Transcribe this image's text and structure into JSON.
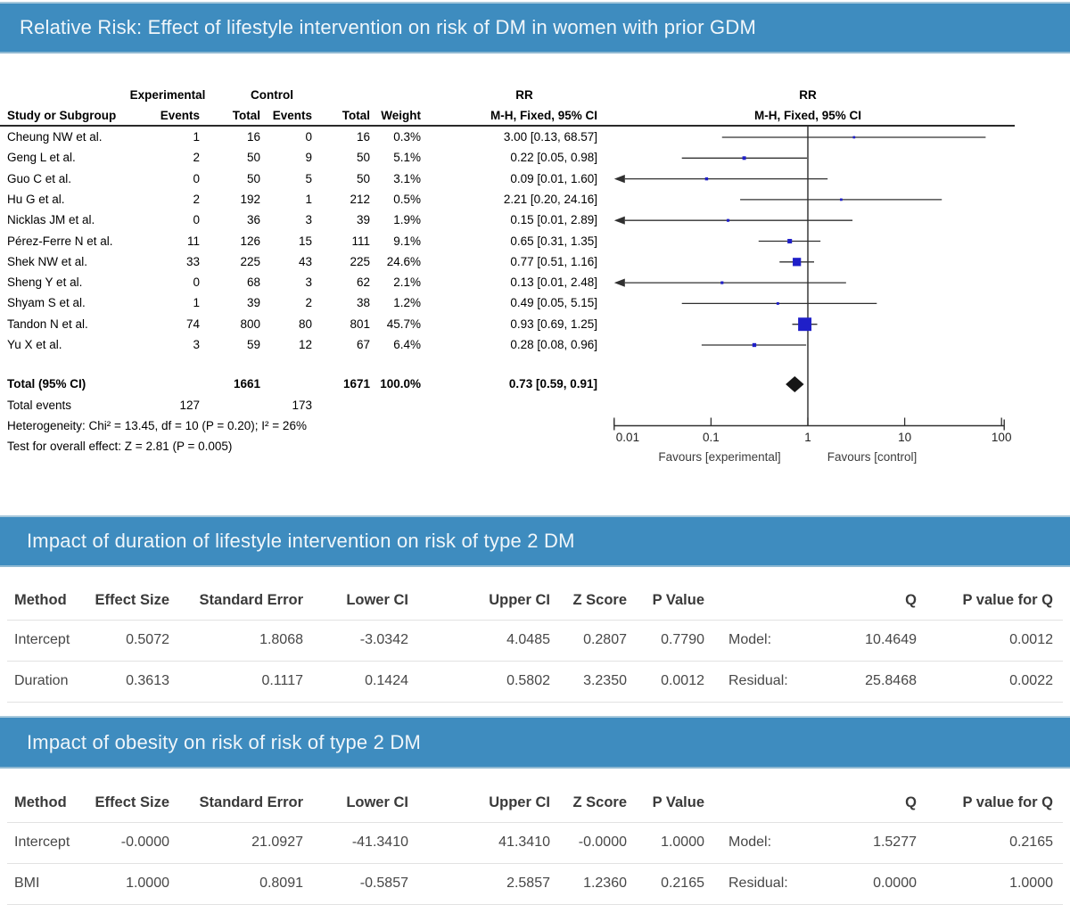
{
  "colors": {
    "banner_bg": "#3e8cbf",
    "marker_blue": "#1f1fc8",
    "diamond_black": "#161616",
    "line_dark": "#303030"
  },
  "forest_header": {
    "group_experimental": "Experimental",
    "group_control": "Control",
    "rr_top_left": "RR",
    "rr_bottom_left": "M-H, Fixed, 95% CI",
    "rr_top_right": "RR",
    "rr_bottom_right": "M-H, Fixed, 95% CI",
    "study": "Study or Subgroup",
    "events": "Events",
    "total": "Total",
    "weight": "Weight"
  },
  "chart_data": [
    {
      "type": "scatter",
      "subtype": "forest-plot",
      "title": "Relative Risk: Effect of lifestyle intervention on risk of DM in women with prior GDM",
      "effect_measure": "RR",
      "model": "M-H, Fixed, 95% CI",
      "x_scale": "log10",
      "xlim": [
        0.01,
        100
      ],
      "x_ticks": [
        0.01,
        0.1,
        1,
        10,
        100
      ],
      "x_tick_labels": [
        "0.01",
        "0.1",
        "1",
        "10",
        "100"
      ],
      "favours_left": "Favours [experimental]",
      "favours_right": "Favours [control]",
      "studies": [
        {
          "name": "Cheung NW et al.",
          "exp_events": "1",
          "exp_total": "16",
          "ctrl_events": "0",
          "ctrl_total": "16",
          "weight": "0.3%",
          "weight_pct": 0.3,
          "rr": 3.0,
          "low": 0.13,
          "high": 68.57,
          "ci_text": "3.00 [0.13, 68.57]"
        },
        {
          "name": "Geng L et al.",
          "exp_events": "2",
          "exp_total": "50",
          "ctrl_events": "9",
          "ctrl_total": "50",
          "weight": "5.1%",
          "weight_pct": 5.1,
          "rr": 0.22,
          "low": 0.05,
          "high": 0.98,
          "ci_text": "0.22 [0.05, 0.98]"
        },
        {
          "name": "Guo C et al.",
          "exp_events": "0",
          "exp_total": "50",
          "ctrl_events": "5",
          "ctrl_total": "50",
          "weight": "3.1%",
          "weight_pct": 3.1,
          "rr": 0.09,
          "low": 0.01,
          "high": 1.6,
          "ci_text": "0.09 [0.01, 1.60]"
        },
        {
          "name": "Hu G et al.",
          "exp_events": "2",
          "exp_total": "192",
          "ctrl_events": "1",
          "ctrl_total": "212",
          "weight": "0.5%",
          "weight_pct": 0.5,
          "rr": 2.21,
          "low": 0.2,
          "high": 24.16,
          "ci_text": "2.21 [0.20, 24.16]"
        },
        {
          "name": "Nicklas JM et al.",
          "exp_events": "0",
          "exp_total": "36",
          "ctrl_events": "3",
          "ctrl_total": "39",
          "weight": "1.9%",
          "weight_pct": 1.9,
          "rr": 0.15,
          "low": 0.01,
          "high": 2.89,
          "ci_text": "0.15 [0.01, 2.89]"
        },
        {
          "name": "Pérez-Ferre N et al.",
          "exp_events": "11",
          "exp_total": "126",
          "ctrl_events": "15",
          "ctrl_total": "111",
          "weight": "9.1%",
          "weight_pct": 9.1,
          "rr": 0.65,
          "low": 0.31,
          "high": 1.35,
          "ci_text": "0.65 [0.31, 1.35]"
        },
        {
          "name": "Shek NW et al.",
          "exp_events": "33",
          "exp_total": "225",
          "ctrl_events": "43",
          "ctrl_total": "225",
          "weight": "24.6%",
          "weight_pct": 24.6,
          "rr": 0.77,
          "low": 0.51,
          "high": 1.16,
          "ci_text": "0.77 [0.51, 1.16]"
        },
        {
          "name": "Sheng Y et al.",
          "exp_events": "0",
          "exp_total": "68",
          "ctrl_events": "3",
          "ctrl_total": "62",
          "weight": "2.1%",
          "weight_pct": 2.1,
          "rr": 0.13,
          "low": 0.01,
          "high": 2.48,
          "ci_text": "0.13 [0.01, 2.48]"
        },
        {
          "name": "Shyam S et al.",
          "exp_events": "1",
          "exp_total": "39",
          "ctrl_events": "2",
          "ctrl_total": "38",
          "weight": "1.2%",
          "weight_pct": 1.2,
          "rr": 0.49,
          "low": 0.05,
          "high": 5.15,
          "ci_text": "0.49 [0.05, 5.15]"
        },
        {
          "name": "Tandon N et al.",
          "exp_events": "74",
          "exp_total": "800",
          "ctrl_events": "80",
          "ctrl_total": "801",
          "weight": "45.7%",
          "weight_pct": 45.7,
          "rr": 0.93,
          "low": 0.69,
          "high": 1.25,
          "ci_text": "0.93 [0.69, 1.25]"
        },
        {
          "name": "Yu X et al.",
          "exp_events": "3",
          "exp_total": "59",
          "ctrl_events": "12",
          "ctrl_total": "67",
          "weight": "6.4%",
          "weight_pct": 6.4,
          "rr": 0.28,
          "low": 0.08,
          "high": 0.96,
          "ci_text": "0.28 [0.08, 0.96]"
        }
      ],
      "total": {
        "label": "Total (95% CI)",
        "exp_total": "1661",
        "ctrl_total": "1671",
        "weight": "100.0%",
        "rr": 0.73,
        "low": 0.59,
        "high": 0.91,
        "ci_text": "0.73 [0.59, 0.91]"
      },
      "total_events": {
        "label": "Total events",
        "exp": "127",
        "ctrl": "173"
      },
      "heterogeneity": "Heterogeneity: Chi² = 13.45, df = 10 (P = 0.20); I² = 26%",
      "overall_effect": "Test for overall effect: Z = 2.81 (P = 0.005)"
    },
    {
      "type": "table",
      "title": "Impact of duration of lifestyle intervention on risk of type 2 DM",
      "headers": [
        "Method",
        "Effect Size",
        "Standard Error",
        "Lower CI",
        "Upper CI",
        "Z Score",
        "P Value",
        "",
        "Q",
        "P value for Q"
      ],
      "rows": [
        [
          "Intercept",
          "0.5072",
          "1.8068",
          "-3.0342",
          "4.0485",
          "0.2807",
          "0.7790",
          "Model:",
          "10.4649",
          "0.0012"
        ],
        [
          "Duration",
          "0.3613",
          "0.1117",
          "0.1424",
          "0.5802",
          "3.2350",
          "0.0012",
          "Residual:",
          "25.8468",
          "0.0022"
        ]
      ]
    },
    {
      "type": "table",
      "title": "Impact of obesity on risk of risk of type 2 DM",
      "headers": [
        "Method",
        "Effect Size",
        "Standard Error",
        "Lower CI",
        "Upper CI",
        "Z Score",
        "P Value",
        "",
        "Q",
        "P value for Q"
      ],
      "rows": [
        [
          "Intercept",
          "-0.0000",
          "21.0927",
          "-41.3410",
          "41.3410",
          "-0.0000",
          "1.0000",
          "Model:",
          "1.5277",
          "0.2165"
        ],
        [
          "BMI",
          "1.0000",
          "0.8091",
          "-0.5857",
          "2.5857",
          "1.2360",
          "0.2165",
          "Residual:",
          "0.0000",
          "1.0000"
        ]
      ]
    }
  ]
}
